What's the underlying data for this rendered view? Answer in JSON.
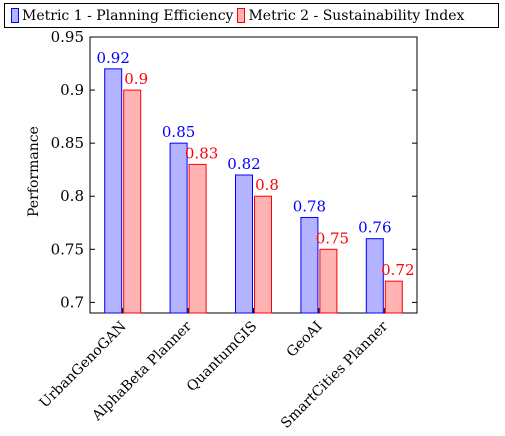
{
  "chart_data": {
    "type": "bar",
    "title": "",
    "xlabel": "",
    "ylabel": "Performance",
    "ylim": [
      0.69,
      0.95
    ],
    "yticks": [
      "0.7",
      "0.75",
      "0.8",
      "0.85",
      "0.9",
      "0.95"
    ],
    "grid": false,
    "legend_position": "top",
    "categories": [
      "UrbanGenoGAN",
      "AlphaBeta Planner",
      "QuantumGIS",
      "GeoAI",
      "SmartCities Planner"
    ],
    "series": [
      {
        "name": "Metric 1 - Planning Efficiency",
        "values": [
          0.92,
          0.85,
          0.82,
          0.78,
          0.76
        ],
        "labels": [
          "0.92",
          "0.85",
          "0.82",
          "0.78",
          "0.76"
        ],
        "fill": "#b3b3ff",
        "stroke": "#0000ff",
        "label_color": "#0000ff"
      },
      {
        "name": "Metric 2 - Sustainability Index",
        "values": [
          0.9,
          0.83,
          0.8,
          0.75,
          0.72
        ],
        "labels": [
          "0.9",
          "0.83",
          "0.8",
          "0.75",
          "0.72"
        ],
        "fill": "#ffb3b3",
        "stroke": "#ff0000",
        "label_color": "#ff0000"
      }
    ]
  }
}
